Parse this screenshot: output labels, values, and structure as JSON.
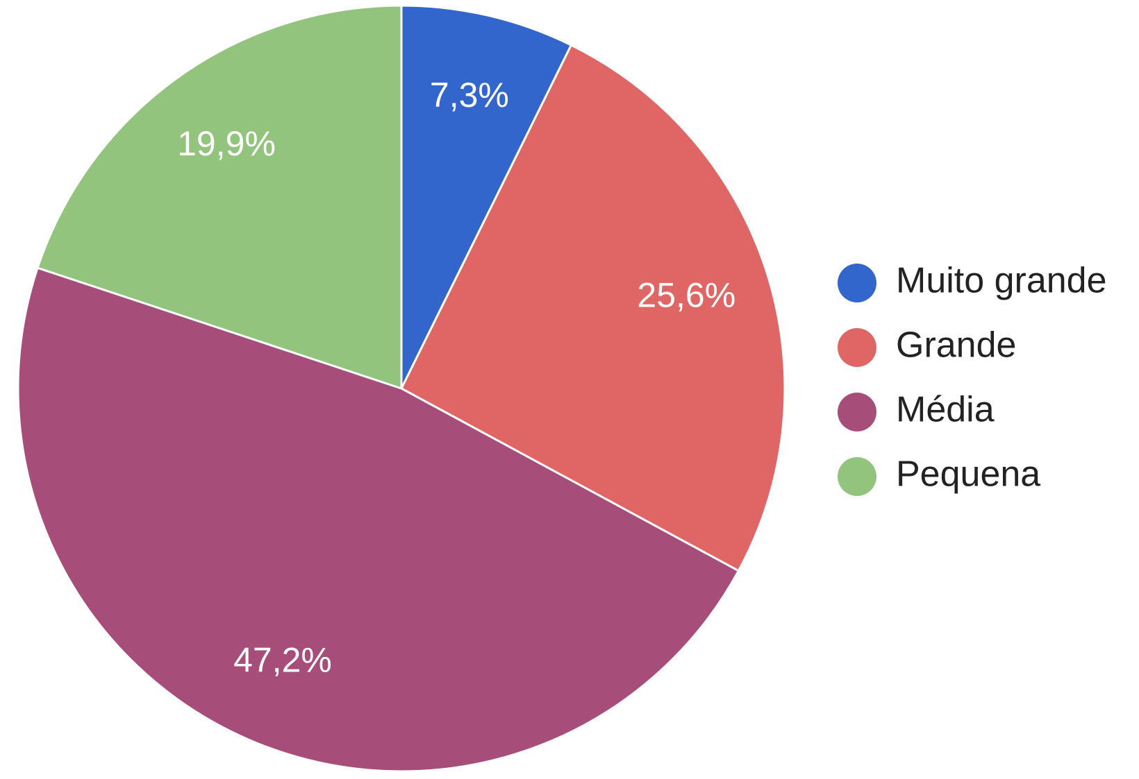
{
  "chart_data": {
    "type": "pie",
    "categories": [
      "Muito grande",
      "Grande",
      "Média",
      "Pequena"
    ],
    "values": [
      7.3,
      25.6,
      47.2,
      19.9
    ],
    "value_labels": [
      "7,3%",
      "25,6%",
      "47,2%",
      "19,9%"
    ],
    "colors": [
      "#3366cc",
      "#e06666",
      "#a64d79",
      "#93c47d"
    ],
    "legend": "right"
  }
}
